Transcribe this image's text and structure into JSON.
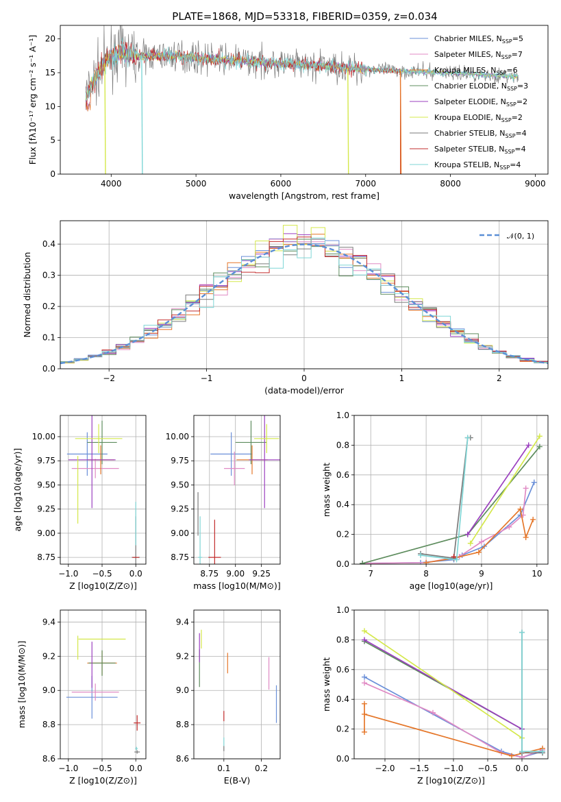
{
  "figure_title": "PLATE=1868, MJD=53318, FIBERID=0359, z=0.034",
  "colors": {
    "Chabrier MILES": "#6a8fd8",
    "Salpeter MILES": "#e08ac4",
    "Kroupa MILES": "#e5772a",
    "Chabrier ELODIE": "#5d8c5d",
    "Salpeter ELODIE": "#9b3fbf",
    "Kroupa ELODIE": "#d4e84a",
    "Chabrier STELIB": "#7a7a7a",
    "Salpeter STELIB": "#c22b2b",
    "Kroupa STELIB": "#7fd6d6",
    "normal": "#5b8fd6"
  },
  "chart_data": [
    {
      "id": "spectrum",
      "type": "line",
      "title": "PLATE=1868, MJD=53318, FIBERID=0359, z=0.034",
      "xlabel": "wavelength [Angstrom, rest frame]",
      "ylabel": "Flux [fλ10⁻¹⁷ erg cm⁻² s⁻¹ A⁻¹]",
      "xlim": [
        3400,
        9150
      ],
      "ylim": [
        0,
        22
      ],
      "xticks": [
        4000,
        5000,
        6000,
        7000,
        8000,
        9000
      ],
      "yticks": [
        0,
        5,
        10,
        15,
        20
      ],
      "legend_position": "upper-right",
      "series": [
        {
          "name": "Chabrier MILES, N_SSP=5"
        },
        {
          "name": "Salpeter MILES, N_SSP=7"
        },
        {
          "name": "Kroupa MILES, N_SSP=6"
        },
        {
          "name": "Chabrier ELODIE, N_SSP=3"
        },
        {
          "name": "Salpeter ELODIE, N_SSP=2"
        },
        {
          "name": "Kroupa ELODIE, N_SSP=2"
        },
        {
          "name": "Chabrier STELIB, N_SSP=4"
        },
        {
          "name": "Salpeter STELIB, N_SSP=4"
        },
        {
          "name": "Kroupa STELIB, N_SSP=4"
        }
      ],
      "approx_profile": {
        "wavelength": [
          3700,
          3800,
          3900,
          4000,
          4100,
          4300,
          4500,
          4800,
          5000,
          5500,
          6000,
          6500,
          7000,
          7500,
          8000,
          8500,
          8800
        ],
        "flux": [
          11.5,
          14,
          16,
          17.5,
          18,
          17.5,
          17.5,
          17.5,
          17.2,
          16.8,
          16.3,
          16.0,
          15.5,
          15.2,
          15.0,
          14.6,
          14.4
        ]
      },
      "dips": [
        {
          "series": "Kroupa ELODIE",
          "wavelength": 3925,
          "to": 0
        },
        {
          "series": "Kroupa STELIB",
          "wavelength": 4360,
          "to": 0
        },
        {
          "series": "Kroupa ELODIE",
          "wavelength": 6790,
          "to": 0
        },
        {
          "series": "Kroupa MILES",
          "wavelength": 7410,
          "to": 0
        }
      ]
    },
    {
      "id": "residuals",
      "type": "histogram",
      "xlabel": "(data-model)/error",
      "ylabel": "Normed distribution",
      "xlim": [
        -2.5,
        2.5
      ],
      "ylim": [
        0,
        0.475
      ],
      "xticks": [
        -2,
        -1,
        0,
        1,
        2
      ],
      "yticks": [
        0.0,
        0.1,
        0.2,
        0.3,
        0.4
      ],
      "legend_position": "upper-right",
      "legend": "𝒩(0, 1)",
      "bins": 35,
      "grid": true
    },
    {
      "id": "age_vs_Z",
      "type": "errorbar",
      "xlabel": "Z [log10(Z/Z⊙)]",
      "ylabel": "age  [log10(age/yr)]",
      "xlim": [
        -1.12,
        0.15
      ],
      "ylim": [
        8.68,
        10.22
      ],
      "xticks": [
        -1.0,
        -0.5,
        0.0
      ],
      "yticks": [
        8.75,
        9.0,
        9.25,
        9.5,
        9.75,
        10.0
      ],
      "grid": true,
      "points": [
        {
          "s": "Chabrier MILES",
          "x": -0.72,
          "y": 9.82,
          "xerr": 0.3,
          "yerr": 0.45
        },
        {
          "s": "Salpeter MILES",
          "x": -0.6,
          "y": 9.67,
          "xerr": 0.35,
          "yerr": 0.2
        },
        {
          "s": "Kroupa MILES",
          "x": -0.52,
          "y": 9.76,
          "xerr": 0.2,
          "yerr": 0.3
        },
        {
          "s": "Chabrier ELODIE",
          "x": -0.5,
          "y": 9.94,
          "xerr": 0.22,
          "yerr": 0.45
        },
        {
          "s": "Salpeter ELODIE",
          "x": -0.65,
          "y": 9.76,
          "xerr": 0.35,
          "yerr": 1.0
        },
        {
          "s": "Kroupa ELODIE",
          "x": -0.55,
          "y": 9.98,
          "xerr": 0.35,
          "yerr": 0.3
        },
        {
          "s": "Kroupa ELODIE",
          "x": -0.86,
          "y": 9.45,
          "xerr": 0,
          "yerr": 0.7
        },
        {
          "s": "Chabrier STELIB",
          "x": 0.0,
          "y": 8.75,
          "xerr": 0.06,
          "yerr": 0.85
        },
        {
          "s": "Salpeter STELIB",
          "x": 0.0,
          "y": 8.75,
          "xerr": 0.05,
          "yerr": 0.0
        },
        {
          "s": "Kroupa STELIB",
          "x": 0.0,
          "y": 9.1,
          "xerr": 0,
          "yerr": 0.45
        }
      ]
    },
    {
      "id": "age_vs_mass",
      "type": "errorbar",
      "xlabel": "mass [log10(M/M⊙)]",
      "xlim": [
        8.6,
        9.43
      ],
      "ylim": [
        8.68,
        10.22
      ],
      "xticks": [
        8.75,
        9.0,
        9.25
      ],
      "yticks": [
        8.75,
        9.0,
        9.25,
        9.5,
        9.75,
        10.0
      ],
      "grid": true,
      "points": [
        {
          "s": "Chabrier MILES",
          "x": 8.96,
          "y": 9.82,
          "xerr": 0.2,
          "yerr": 0.45
        },
        {
          "s": "Salpeter MILES",
          "x": 8.99,
          "y": 9.67,
          "xerr": 0.1,
          "yerr": 0.35
        },
        {
          "s": "Kroupa MILES",
          "x": 9.16,
          "y": 9.76,
          "xerr": 0.15,
          "yerr": 0.3
        },
        {
          "s": "Chabrier ELODIE",
          "x": 9.15,
          "y": 9.94,
          "xerr": 0.15,
          "yerr": 0.45
        },
        {
          "s": "Salpeter ELODIE",
          "x": 9.28,
          "y": 9.76,
          "xerr": 0.15,
          "yerr": 1.0
        },
        {
          "s": "Kroupa ELODIE",
          "x": 9.3,
          "y": 9.98,
          "xerr": 0.12,
          "yerr": 0.3
        },
        {
          "s": "Chabrier STELIB",
          "x": 8.64,
          "y": 9.2,
          "xerr": 0,
          "yerr": 0.45
        },
        {
          "s": "Salpeter STELIB",
          "x": 8.8,
          "y": 8.75,
          "xerr": 0.06,
          "yerr": 0.78
        },
        {
          "s": "Kroupa STELIB",
          "x": 8.66,
          "y": 8.75,
          "xerr": 0.02,
          "yerr": 0.85
        }
      ]
    },
    {
      "id": "massweight_vs_age",
      "type": "line",
      "xlabel": "age  [log10(age/yr)]",
      "ylabel": "mass weight",
      "xlim": [
        6.7,
        10.2
      ],
      "ylim": [
        0,
        1
      ],
      "xticks": [
        7,
        8,
        9,
        10
      ],
      "yticks": [
        0.0,
        0.2,
        0.4,
        0.6,
        0.8,
        1.0
      ],
      "grid": true,
      "series": [
        {
          "s": "Chabrier MILES",
          "x": [
            6.85,
            7.9,
            8.5,
            8.65,
            9.05,
            9.7,
            9.95
          ],
          "y": [
            0.005,
            0.01,
            0.03,
            0.06,
            0.12,
            0.33,
            0.55
          ]
        },
        {
          "s": "Salpeter MILES",
          "x": [
            6.85,
            8.0,
            8.6,
            9.0,
            9.5,
            9.75,
            9.8
          ],
          "y": [
            0.005,
            0.01,
            0.05,
            0.15,
            0.25,
            0.33,
            0.51
          ]
        },
        {
          "s": "Kroupa MILES",
          "x": [
            8.0,
            8.5,
            8.95,
            9.7,
            9.8,
            9.93
          ],
          "y": [
            0.01,
            0.04,
            0.08,
            0.37,
            0.18,
            0.3
          ]
        },
        {
          "s": "Chabrier ELODIE",
          "x": [
            6.85,
            8.75,
            10.05
          ],
          "y": [
            0.005,
            0.2,
            0.79
          ]
        },
        {
          "s": "Salpeter ELODIE",
          "x": [
            8.75,
            9.85
          ],
          "y": [
            0.2,
            0.8
          ]
        },
        {
          "s": "Kroupa ELODIE",
          "x": [
            8.8,
            10.05
          ],
          "y": [
            0.14,
            0.86
          ]
        },
        {
          "s": "Chabrier STELIB",
          "x": [
            7.9,
            8.5,
            8.75,
            8.8
          ],
          "y": [
            0.07,
            0.04,
            0.85,
            0.85
          ]
        },
        {
          "s": "Salpeter STELIB",
          "x": [
            8.5
          ],
          "y": [
            0.05
          ]
        },
        {
          "s": "Kroupa STELIB",
          "x": [
            7.9,
            8.55,
            8.75
          ],
          "y": [
            0.06,
            0.03,
            0.85
          ]
        }
      ]
    },
    {
      "id": "mass_vs_Z",
      "type": "errorbar",
      "xlabel": "Z [log10(Z/Z⊙)]",
      "ylabel": "mass [log10(M/M⊙)]",
      "xlim": [
        -1.12,
        0.15
      ],
      "ylim": [
        8.6,
        9.47
      ],
      "xticks": [
        -1.0,
        -0.5,
        0.0
      ],
      "yticks": [
        8.6,
        8.8,
        9.0,
        9.2,
        9.4
      ],
      "grid": true,
      "points": [
        {
          "s": "Chabrier MILES",
          "x": -0.65,
          "y": 8.96,
          "xerr": 0.38,
          "yerr": 0.25
        },
        {
          "s": "Salpeter MILES",
          "x": -0.6,
          "y": 8.99,
          "xerr": 0.35,
          "yerr": 0.1
        },
        {
          "s": "Kroupa MILES",
          "x": -0.5,
          "y": 9.16,
          "xerr": 0.22,
          "yerr": 0.14
        },
        {
          "s": "Chabrier ELODIE",
          "x": -0.5,
          "y": 9.16,
          "xerr": 0.2,
          "yerr": 0.15
        },
        {
          "s": "Salpeter ELODIE",
          "x": -0.65,
          "y": 9.15,
          "xerr": 0,
          "yerr": 0.27
        },
        {
          "s": "Kroupa ELODIE",
          "x": -0.5,
          "y": 9.3,
          "xerr": 0.35,
          "yerr": 0.0
        },
        {
          "s": "Kroupa ELODIE",
          "x": -0.86,
          "y": 9.25,
          "xerr": 0,
          "yerr": 0.14
        },
        {
          "s": "Chabrier STELIB",
          "x": 0.02,
          "y": 8.64,
          "xerr": 0.04,
          "yerr": 0.02
        },
        {
          "s": "Salpeter STELIB",
          "x": 0.02,
          "y": 8.81,
          "xerr": 0.05,
          "yerr": 0.09
        },
        {
          "s": "Kroupa STELIB",
          "x": 0.01,
          "y": 8.66,
          "xerr": 0.02,
          "yerr": 0.02
        }
      ]
    },
    {
      "id": "mass_vs_ebv",
      "type": "errorbar",
      "xlabel": "E(B-V)",
      "xlim": [
        0.02,
        0.25
      ],
      "ylim": [
        8.6,
        9.47
      ],
      "xticks": [
        0.1,
        0.2
      ],
      "yticks": [
        8.6,
        8.8,
        9.0,
        9.2,
        9.4
      ],
      "grid": true,
      "points": [
        {
          "s": "Chabrier MILES",
          "x": 0.24,
          "y": 8.92,
          "xerr": 0,
          "yerr": 0.22
        },
        {
          "s": "Salpeter MILES",
          "x": 0.22,
          "y": 9.1,
          "xerr": 0,
          "yerr": 0.19
        },
        {
          "s": "Kroupa MILES",
          "x": 0.11,
          "y": 9.16,
          "xerr": 0,
          "yerr": 0.12
        },
        {
          "s": "Chabrier ELODIE",
          "x": 0.035,
          "y": 9.13,
          "xerr": 0,
          "yerr": 0.22
        },
        {
          "s": "Salpeter ELODIE",
          "x": 0.035,
          "y": 9.25,
          "xerr": 0,
          "yerr": 0.17
        },
        {
          "s": "Kroupa ELODIE",
          "x": 0.04,
          "y": 9.3,
          "xerr": 0,
          "yerr": 0.11
        },
        {
          "s": "Chabrier STELIB",
          "x": 0.1,
          "y": 8.66,
          "xerr": 0,
          "yerr": 0.03
        },
        {
          "s": "Salpeter STELIB",
          "x": 0.1,
          "y": 8.85,
          "xerr": 0,
          "yerr": 0.06
        },
        {
          "s": "Kroupa STELIB",
          "x": 0.1,
          "y": 8.7,
          "xerr": 0,
          "yerr": 0.05
        }
      ]
    },
    {
      "id": "massweight_vs_Z",
      "type": "line",
      "xlabel": "Z [log10(Z/Z⊙)]",
      "ylabel": "mass weight",
      "xlim": [
        -2.45,
        0.38
      ],
      "ylim": [
        0,
        1
      ],
      "xticks": [
        -2.0,
        -1.5,
        -1.0,
        -0.5,
        0.0
      ],
      "yticks": [
        0.0,
        0.2,
        0.4,
        0.6,
        0.8,
        1.0
      ],
      "grid": true,
      "series": [
        {
          "s": "Chabrier MILES",
          "x": [
            -2.3,
            -0.3,
            0.0,
            0.3
          ],
          "y": [
            0.55,
            0.05,
            0.01,
            0.05
          ]
        },
        {
          "s": "Salpeter MILES",
          "x": [
            -2.3,
            -1.3,
            -0.3,
            0.0,
            0.3
          ],
          "y": [
            0.51,
            0.31,
            0.04,
            0.01,
            0.06
          ]
        },
        {
          "s": "Kroupa MILES",
          "x": [
            -2.3,
            -2.3,
            -2.3,
            -0.15,
            0.3
          ],
          "y": [
            0.37,
            0.18,
            0.3,
            0.02,
            0.07
          ]
        },
        {
          "s": "Chabrier ELODIE",
          "x": [
            -2.3,
            0.0
          ],
          "y": [
            0.79,
            0.2
          ]
        },
        {
          "s": "Salpeter ELODIE",
          "x": [
            -2.3,
            0.0
          ],
          "y": [
            0.8,
            0.2
          ]
        },
        {
          "s": "Kroupa ELODIE",
          "x": [
            -2.3,
            0.0
          ],
          "y": [
            0.86,
            0.14
          ]
        },
        {
          "s": "Chabrier STELIB",
          "x": [
            0.0,
            0.0,
            0.3
          ],
          "y": [
            0.85,
            0.04,
            0.04
          ]
        },
        {
          "s": "Salpeter STELIB",
          "x": [
            0.0
          ],
          "y": [
            0.05
          ]
        },
        {
          "s": "Kroupa STELIB",
          "x": [
            0.0,
            0.0,
            0.3
          ],
          "y": [
            0.85,
            0.05,
            0.05
          ]
        }
      ]
    }
  ]
}
